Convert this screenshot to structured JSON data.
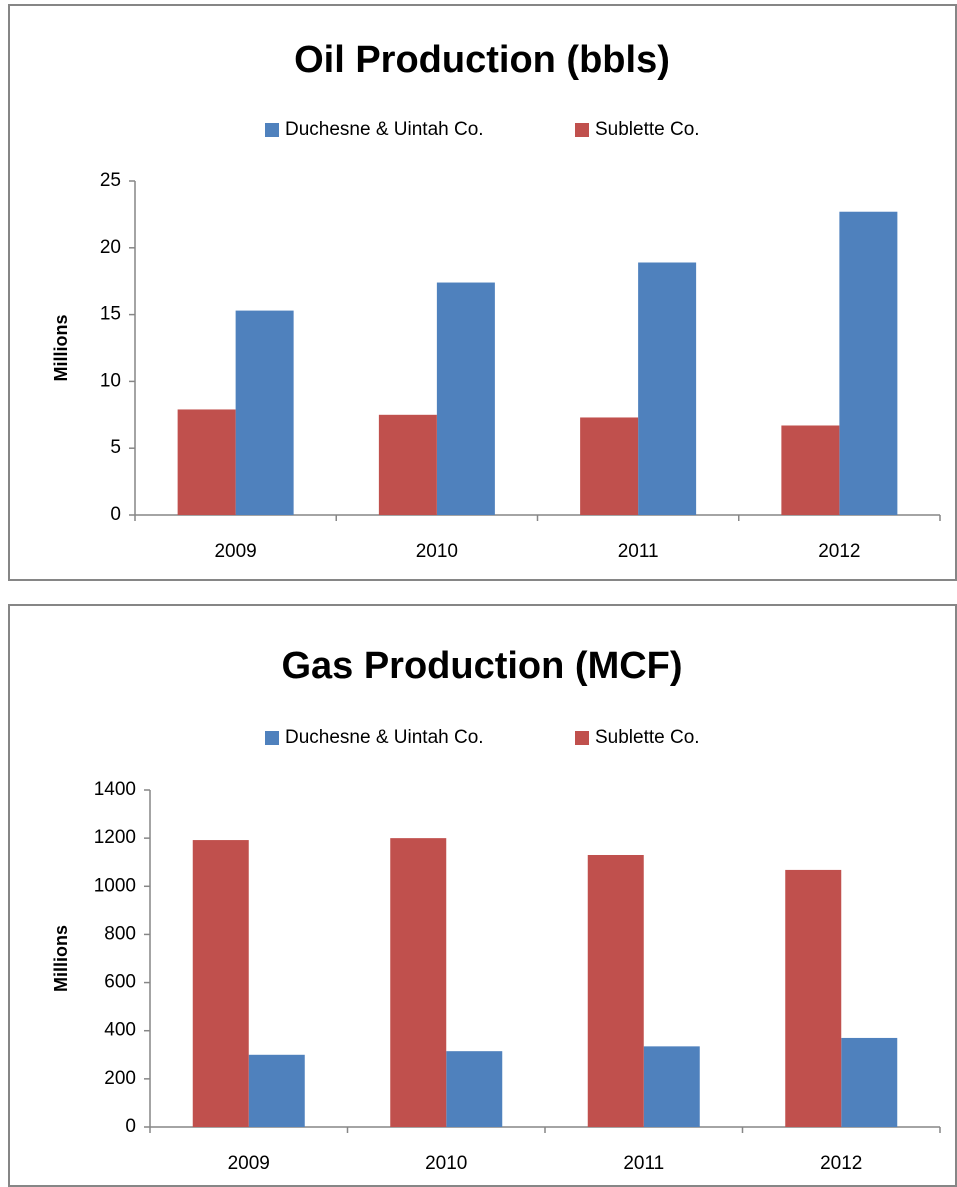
{
  "chart_data": [
    {
      "type": "bar",
      "title": "Oil Production (bbls)",
      "y_label": "Millions",
      "categories": [
        "2009",
        "2010",
        "2011",
        "2012"
      ],
      "series": [
        {
          "name": "Duchesne & Uintah Co.",
          "color": "#4f81bd",
          "values": [
            15.3,
            17.4,
            18.9,
            22.7
          ]
        },
        {
          "name": "Sublette Co.",
          "color": "#c0504d",
          "values": [
            7.9,
            7.5,
            7.3,
            6.7
          ]
        }
      ],
      "ylim": [
        0,
        25
      ],
      "yticks": [
        0,
        5,
        10,
        15,
        20,
        25
      ],
      "grid": false,
      "legend": "top"
    },
    {
      "type": "bar",
      "title": "Gas Production (MCF)",
      "y_label": "Millions",
      "categories": [
        "2009",
        "2010",
        "2011",
        "2012"
      ],
      "series": [
        {
          "name": "Duchesne & Uintah Co.",
          "color": "#4f81bd",
          "values": [
            300,
            315,
            335,
            370
          ]
        },
        {
          "name": "Sublette Co.",
          "color": "#c0504d",
          "values": [
            1192,
            1200,
            1130,
            1068
          ]
        }
      ],
      "ylim": [
        0,
        1400
      ],
      "yticks": [
        0,
        200,
        400,
        600,
        800,
        1000,
        1200,
        1400
      ],
      "grid": false,
      "legend": "top"
    }
  ]
}
